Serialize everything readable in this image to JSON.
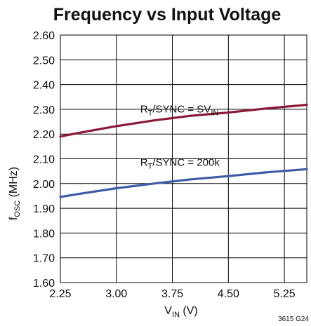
{
  "chart_data": {
    "type": "line",
    "title": "Frequency vs Input Voltage",
    "xlabel_main": "V",
    "xlabel_sub": "IN",
    "xlabel_unit": " (V)",
    "ylabel_main": "f",
    "ylabel_sub": "OSC",
    "ylabel_unit": " (MHz)",
    "xlim": [
      2.25,
      5.55
    ],
    "ylim": [
      1.6,
      2.6
    ],
    "x_ticks": [
      2.25,
      3.0,
      3.75,
      4.5,
      5.25
    ],
    "x_tick_labels": [
      "2.25",
      "3.00",
      "3.75",
      "4.50",
      "5.25"
    ],
    "y_ticks": [
      1.6,
      1.7,
      1.8,
      1.9,
      2.0,
      2.1,
      2.2,
      2.3,
      2.4,
      2.5,
      2.6
    ],
    "y_tick_labels": [
      "1.60",
      "1.70",
      "1.80",
      "1.90",
      "2.00",
      "2.10",
      "2.20",
      "2.30",
      "2.40",
      "2.50",
      "2.60"
    ],
    "grid": true,
    "series": [
      {
        "name_main": "R",
        "name_sub": "T",
        "name_rest": "/SYNC = SV",
        "name_sub2": "IN",
        "color": "#8b1a3a",
        "x": [
          2.25,
          2.5,
          3.0,
          3.5,
          4.0,
          4.5,
          5.0,
          5.55
        ],
        "y": [
          2.19,
          2.205,
          2.232,
          2.255,
          2.274,
          2.287,
          2.303,
          2.318
        ]
      },
      {
        "name_main": "R",
        "name_sub": "T",
        "name_rest": "/SYNC = 200k",
        "name_sub2": "",
        "color": "#3f5ba8",
        "x": [
          2.25,
          2.5,
          3.0,
          3.5,
          4.0,
          4.5,
          5.0,
          5.55
        ],
        "y": [
          1.946,
          1.958,
          1.981,
          2.0,
          2.017,
          2.03,
          2.045,
          2.058
        ]
      }
    ],
    "figure_code": "3615 G24"
  }
}
